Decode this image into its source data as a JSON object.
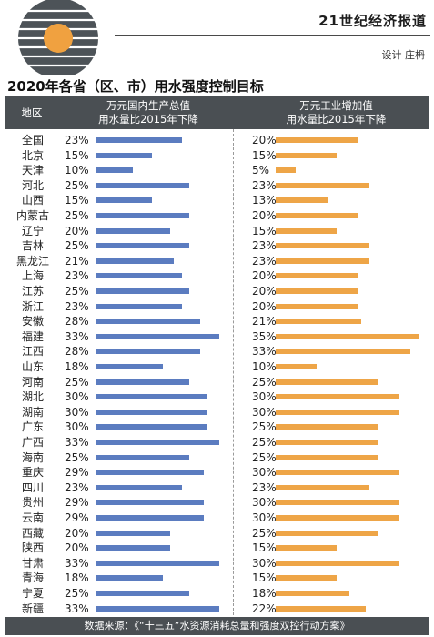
{
  "brand": "21世纪经济报道",
  "designer": "设计 庄枬",
  "colors": {
    "gdp_bar": "#5b7cc0",
    "industry_bar": "#eea547",
    "header_bg": "#4a4f53"
  },
  "chart_data": {
    "type": "bar",
    "title": "2020年各省（区、市）用水强度控制目标",
    "columns": {
      "region": "地区",
      "gdp_line1": "万元国内生产总值",
      "gdp_line2": "用水量比2015年下降",
      "industry_line1": "万元工业增加值",
      "industry_line2": "用水量比2015年下降"
    },
    "categories": [
      "全国",
      "北京",
      "天津",
      "河北",
      "山西",
      "内蒙古",
      "辽宁",
      "吉林",
      "黑龙江",
      "上海",
      "江苏",
      "浙江",
      "安徽",
      "福建",
      "江西",
      "山东",
      "河南",
      "湖北",
      "湖南",
      "广东",
      "广西",
      "海南",
      "重庆",
      "四川",
      "贵州",
      "云南",
      "西藏",
      "陕西",
      "甘肃",
      "青海",
      "宁夏",
      "新疆"
    ],
    "series": [
      {
        "name": "万元国内生产总值用水量比2015年下降",
        "unit": "%",
        "values": [
          23,
          15,
          10,
          25,
          15,
          25,
          20,
          25,
          21,
          23,
          25,
          23,
          28,
          33,
          28,
          18,
          25,
          30,
          30,
          30,
          33,
          25,
          29,
          23,
          29,
          29,
          20,
          20,
          33,
          18,
          25,
          33
        ]
      },
      {
        "name": "万元工业增加值用水量比2015年下降",
        "unit": "%",
        "values": [
          20,
          15,
          5,
          23,
          13,
          20,
          15,
          23,
          23,
          20,
          20,
          20,
          21,
          35,
          33,
          10,
          25,
          30,
          30,
          25,
          25,
          25,
          30,
          23,
          30,
          30,
          25,
          15,
          30,
          15,
          18,
          22
        ]
      }
    ],
    "ylim": [
      0,
      35
    ]
  },
  "source": "数据来源：《“十三五”水资源消耗总量和强度双控行动方案》"
}
